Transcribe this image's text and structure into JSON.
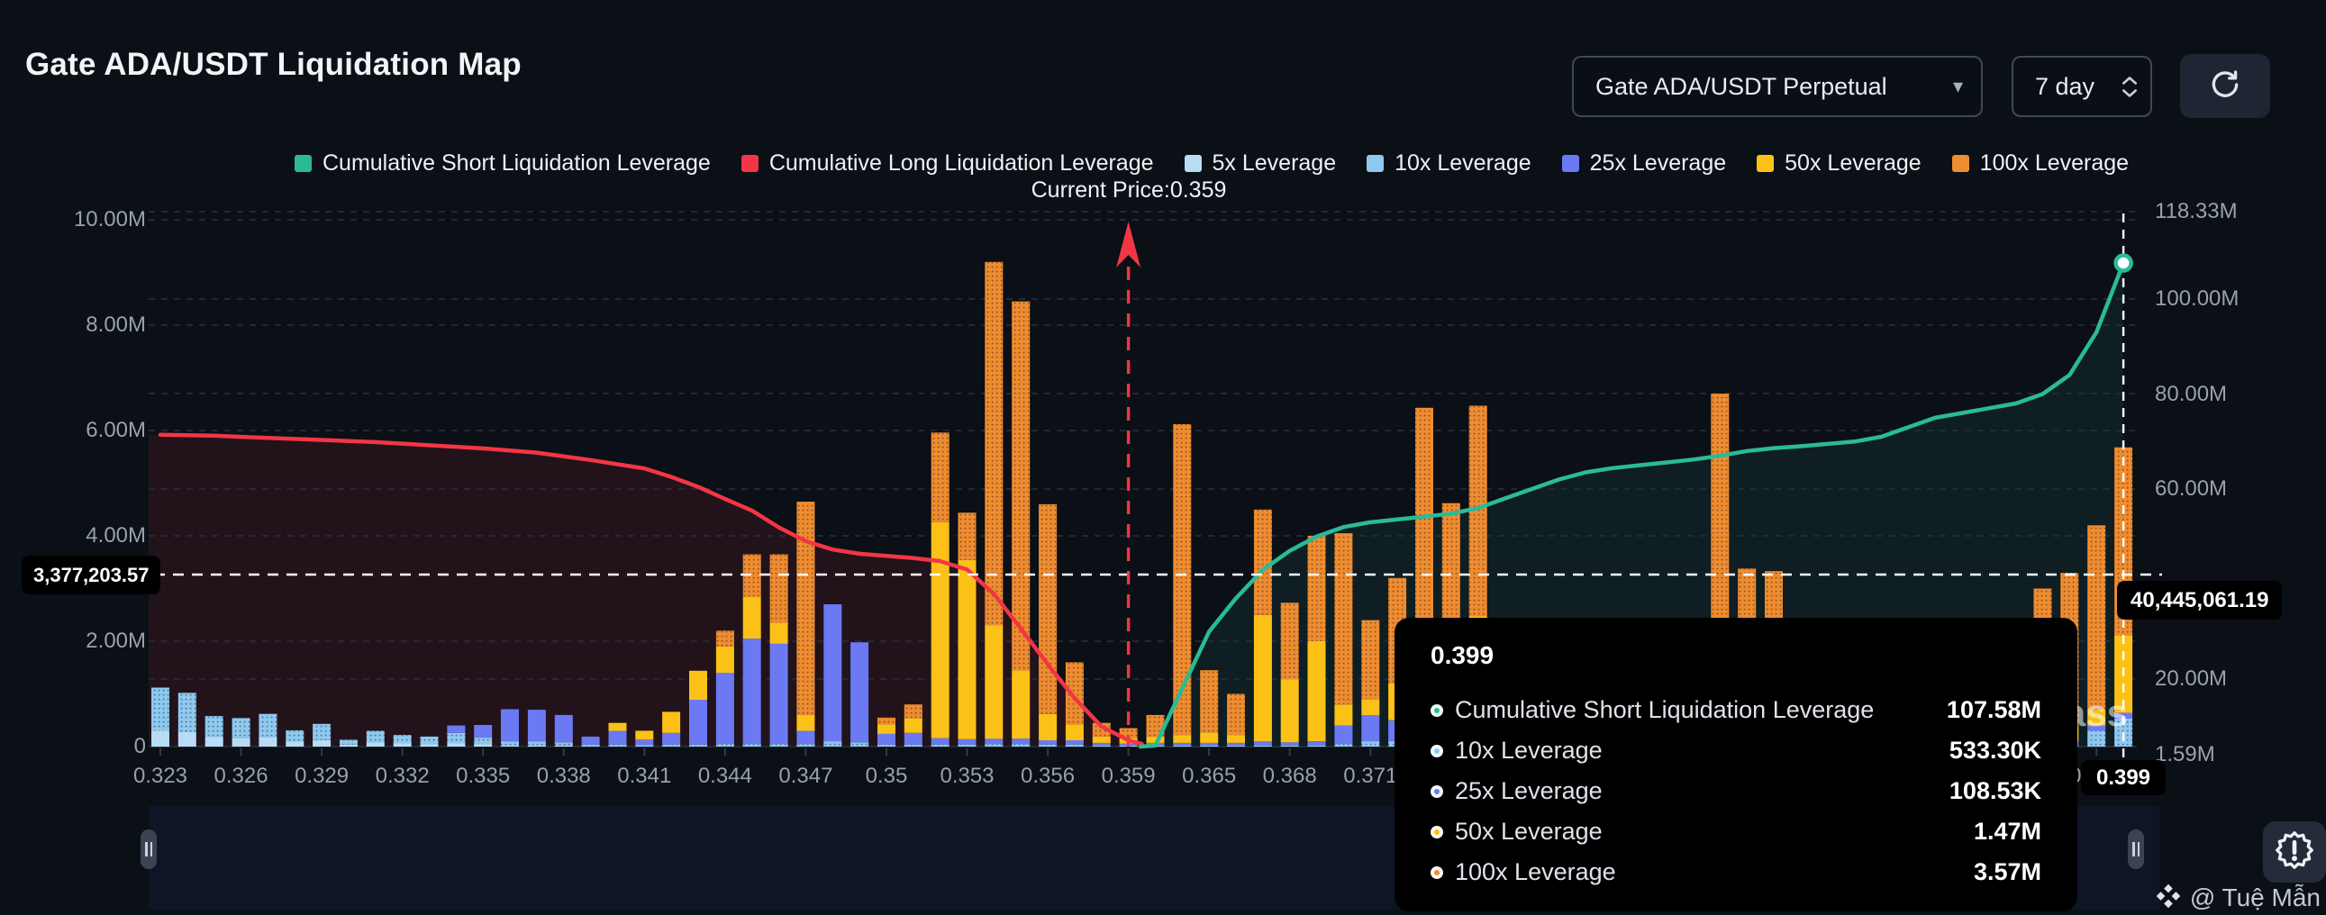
{
  "header": {
    "title": "Gate ADA/USDT Liquidation Map"
  },
  "controls": {
    "pair_selector": {
      "value": "Gate ADA/USDT Perpetual"
    },
    "period": {
      "value": "7 day"
    }
  },
  "palette": {
    "short": "#2abb96",
    "long": "#f23645",
    "x5": "#b9dcf5",
    "x10": "#8ec9f0",
    "x25": "#6b79f2",
    "x50": "#fbc117",
    "x100": "#ef8c30",
    "background": "#0b0f16",
    "tooltip_bg": "#000000"
  },
  "legend": {
    "items": [
      {
        "key": "short",
        "label": "Cumulative Short Liquidation Leverage"
      },
      {
        "key": "long",
        "label": "Cumulative Long Liquidation Leverage"
      },
      {
        "key": "x5",
        "label": "5x Leverage"
      },
      {
        "key": "x10",
        "label": "10x Leverage"
      },
      {
        "key": "x25",
        "label": "25x Leverage"
      },
      {
        "key": "x50",
        "label": "50x Leverage"
      },
      {
        "key": "x100",
        "label": "100x Leverage"
      }
    ]
  },
  "current_price": {
    "label": "Current Price:0.359",
    "value": 0.359
  },
  "axes": {
    "left": [
      {
        "v": 10,
        "label": "10.00M"
      },
      {
        "v": 8,
        "label": "8.00M"
      },
      {
        "v": 6,
        "label": "6.00M"
      },
      {
        "v": 4,
        "label": "4.00M"
      },
      {
        "v": 2,
        "label": "2.00M"
      },
      {
        "v": 0,
        "label": "0"
      }
    ],
    "right": [
      {
        "v": 118.33,
        "label": "118.33M"
      },
      {
        "v": 100,
        "label": "100.00M"
      },
      {
        "v": 80,
        "label": "80.00M"
      },
      {
        "v": 60,
        "label": "60.00M"
      },
      {
        "v": 20,
        "label": "20.00M"
      },
      {
        "v": 1.59,
        "label": "1.59M"
      }
    ]
  },
  "crosshair": {
    "left_label": "3,377,203.57",
    "right_label": "40,445,061.19",
    "x_label": "0.399"
  },
  "tooltip": {
    "title": "0.399",
    "rows": [
      {
        "key": "short",
        "label": "Cumulative Short Liquidation Leverage",
        "value": "107.58M"
      },
      {
        "key": "x10",
        "label": "10x Leverage",
        "value": "533.30K"
      },
      {
        "key": "x25",
        "label": "25x Leverage",
        "value": "108.53K"
      },
      {
        "key": "x50",
        "label": "50x Leverage",
        "value": "1.47M"
      },
      {
        "key": "x100",
        "label": "100x Leverage",
        "value": "3.57M"
      }
    ]
  },
  "watermark": "ass",
  "attribution": {
    "handle": "@ Tuệ Mẫn"
  },
  "chart_data": {
    "type": "bar+line",
    "title": "Gate ADA/USDT Liquidation Map",
    "x_axis_note": "price levels, labels every 3rd bar",
    "left_axis": {
      "unit": "M",
      "min": 0,
      "max": 10,
      "ticks": [
        0,
        2,
        4,
        6,
        8,
        10
      ]
    },
    "right_axis": {
      "unit": "M",
      "min": 1.59,
      "max": 118.33,
      "ticks": [
        1.59,
        20,
        60,
        80,
        100,
        118.33
      ]
    },
    "bar_columns": [
      "price",
      "5x Leverage",
      "10x Leverage",
      "25x Leverage",
      "50x Leverage",
      "100x Leverage"
    ],
    "bars": [
      [
        "0.323",
        0.3,
        0.82,
        0,
        0,
        0
      ],
      [
        "0.324",
        0.28,
        0.74,
        0,
        0,
        0
      ],
      [
        "0.325",
        0.18,
        0.4,
        0,
        0,
        0
      ],
      [
        "0.326",
        0.16,
        0.38,
        0,
        0,
        0
      ],
      [
        "0.327",
        0.18,
        0.44,
        0,
        0,
        0
      ],
      [
        "0.328",
        0.1,
        0.21,
        0,
        0,
        0
      ],
      [
        "0.329",
        0.12,
        0.31,
        0,
        0,
        0
      ],
      [
        "0.330",
        0.04,
        0.09,
        0,
        0,
        0
      ],
      [
        "0.331",
        0.08,
        0.22,
        0,
        0,
        0
      ],
      [
        "0.332",
        0.06,
        0.16,
        0,
        0,
        0
      ],
      [
        "0.333",
        0.05,
        0.14,
        0,
        0,
        0
      ],
      [
        "0.334",
        0.06,
        0.2,
        0.14,
        0,
        0
      ],
      [
        "0.335",
        0.05,
        0.12,
        0.24,
        0,
        0
      ],
      [
        "0.336",
        0.02,
        0.08,
        0.61,
        0,
        0
      ],
      [
        "0.337",
        0.02,
        0.08,
        0.6,
        0,
        0
      ],
      [
        "0.338",
        0.02,
        0.06,
        0.52,
        0,
        0
      ],
      [
        "0.339",
        0,
        0.04,
        0.15,
        0,
        0
      ],
      [
        "0.340",
        0,
        0.04,
        0.26,
        0.15,
        0
      ],
      [
        "0.341",
        0,
        0.03,
        0.1,
        0.17,
        0
      ],
      [
        "0.342",
        0,
        0.04,
        0.22,
        0.4,
        0
      ],
      [
        "0.343",
        0,
        0.04,
        0.85,
        0.55,
        0
      ],
      [
        "0.344",
        0,
        0.05,
        1.35,
        0.5,
        0.3
      ],
      [
        "0.345",
        0,
        0.05,
        2.0,
        0.8,
        0.8
      ],
      [
        "0.346",
        0,
        0.05,
        1.9,
        0.4,
        1.3
      ],
      [
        "0.347",
        0,
        0.05,
        0.25,
        0.3,
        4.05
      ],
      [
        "0.348",
        0,
        0.1,
        2.6,
        0,
        0
      ],
      [
        "0.349",
        0,
        0.08,
        1.9,
        0,
        0
      ],
      [
        "0.350",
        0,
        0.04,
        0.2,
        0.18,
        0.13
      ],
      [
        "0.351",
        0,
        0.04,
        0.22,
        0.28,
        0.26
      ],
      [
        "0.352",
        0,
        0.04,
        0.12,
        4.1,
        1.7
      ],
      [
        "0.353",
        0,
        0.04,
        0.1,
        3.4,
        0.9
      ],
      [
        "0.354",
        0,
        0.05,
        0.1,
        2.15,
        6.9
      ],
      [
        "0.355",
        0,
        0.05,
        0.1,
        1.3,
        7.0
      ],
      [
        "0.356",
        0,
        0.04,
        0.08,
        0.5,
        3.98
      ],
      [
        "0.357",
        0,
        0.04,
        0.08,
        0.3,
        1.18
      ],
      [
        "0.358",
        0,
        0.02,
        0.05,
        0.12,
        0.26
      ],
      [
        "0.359",
        0,
        0.02,
        0.04,
        0.1,
        0.19
      ],
      [
        "0.361",
        0,
        0.02,
        0.05,
        0.12,
        0.41
      ],
      [
        "0.363",
        0,
        0.02,
        0.05,
        0.15,
        5.9
      ],
      [
        "0.365",
        0,
        0.02,
        0.05,
        0.2,
        1.18
      ],
      [
        "0.366",
        0,
        0.02,
        0.05,
        0.15,
        0.78
      ],
      [
        "0.367",
        0,
        0.02,
        0.08,
        2.4,
        2.0
      ],
      [
        "0.368",
        0,
        0.02,
        0.06,
        1.2,
        1.45
      ],
      [
        "0.369",
        0,
        0.02,
        0.08,
        1.9,
        2.0
      ],
      [
        "0.370",
        0,
        0.05,
        0.35,
        0.4,
        3.25
      ],
      [
        "0.371",
        0,
        0.1,
        0.5,
        0.3,
        1.5
      ],
      [
        "0.372",
        0,
        0.1,
        0.4,
        0.7,
        2.0
      ],
      [
        "0.373",
        0,
        0.03,
        0.3,
        1.8,
        4.3
      ],
      [
        "0.374",
        0,
        0.02,
        0.1,
        1.5,
        3.0
      ],
      [
        "0.375",
        0,
        0.02,
        0.15,
        2.3,
        4.0
      ],
      [
        "0.376",
        0,
        0.02,
        0.08,
        0.3,
        2.0
      ],
      [
        "0.377",
        0,
        0.02,
        0.05,
        0.2,
        1.2
      ],
      [
        "0.378",
        0,
        0.02,
        0.05,
        0.3,
        1.6
      ],
      [
        "0.379",
        0,
        0.02,
        0.05,
        1.0,
        1.3
      ],
      [
        "0.380",
        0,
        0.02,
        0.05,
        0.5,
        1.5
      ],
      [
        "0.381",
        0,
        0.02,
        0.05,
        0.3,
        1.3
      ],
      [
        "0.382",
        0,
        0.02,
        0.05,
        0.4,
        1.4
      ],
      [
        "0.383",
        0,
        0.02,
        0.1,
        2.26,
        0
      ],
      [
        "0.384",
        0,
        0.02,
        0.08,
        0.3,
        6.3
      ],
      [
        "0.385",
        0,
        0.02,
        0.06,
        0.3,
        3.0
      ],
      [
        "0.386",
        0,
        0.02,
        0.06,
        0.3,
        2.95
      ],
      [
        "0.387",
        0,
        0.02,
        0.05,
        0.2,
        1.2
      ],
      [
        "0.388",
        0,
        0.02,
        0.05,
        0.2,
        1.0
      ],
      [
        "0.389",
        0,
        0.02,
        0.05,
        0.3,
        1.2
      ],
      [
        "0.390",
        0,
        0.02,
        0.05,
        0.2,
        1.1
      ],
      [
        "0.391",
        0,
        0.02,
        0.05,
        0.3,
        1.4
      ],
      [
        "0.392",
        0,
        0.02,
        0.05,
        0.2,
        1.2
      ],
      [
        "0.393",
        0,
        0.02,
        0.05,
        0.3,
        1.5
      ],
      [
        "0.394",
        0,
        0.02,
        0.05,
        0.2,
        1.3
      ],
      [
        "0.395",
        0,
        0.02,
        0.05,
        0.3,
        1.6
      ],
      [
        "0.396",
        0,
        0.02,
        0.08,
        0.2,
        2.7
      ],
      [
        "0.397",
        0,
        0.02,
        0.08,
        0.3,
        2.9
      ],
      [
        "0.398",
        0,
        0.3,
        0.1,
        0.3,
        3.5
      ],
      [
        "0.399",
        0,
        0.53,
        0.11,
        1.47,
        3.57
      ]
    ],
    "long_line_axis": "left",
    "long_line": [
      [
        "0.323",
        5.92
      ],
      [
        "0.325",
        5.9
      ],
      [
        "0.327",
        5.86
      ],
      [
        "0.329",
        5.82
      ],
      [
        "0.331",
        5.78
      ],
      [
        "0.333",
        5.72
      ],
      [
        "0.335",
        5.66
      ],
      [
        "0.337",
        5.58
      ],
      [
        "0.339",
        5.44
      ],
      [
        "0.341",
        5.28
      ],
      [
        "0.342",
        5.12
      ],
      [
        "0.343",
        4.93
      ],
      [
        "0.344",
        4.7
      ],
      [
        "0.345",
        4.48
      ],
      [
        "0.346",
        4.16
      ],
      [
        "0.347",
        3.9
      ],
      [
        "0.348",
        3.74
      ],
      [
        "0.349",
        3.66
      ],
      [
        "0.350",
        3.62
      ],
      [
        "0.351",
        3.58
      ],
      [
        "0.352",
        3.52
      ],
      [
        "0.353",
        3.36
      ],
      [
        "0.354",
        2.9
      ],
      [
        "0.355",
        2.24
      ],
      [
        "0.356",
        1.56
      ],
      [
        "0.357",
        0.92
      ],
      [
        "0.358",
        0.38
      ],
      [
        "0.359",
        0.12
      ],
      [
        "0.360",
        0.05
      ]
    ],
    "short_line_axis": "right",
    "short_line": [
      [
        "0.361",
        6
      ],
      [
        "0.363",
        18
      ],
      [
        "0.365",
        30
      ],
      [
        "0.366",
        37
      ],
      [
        "0.367",
        43
      ],
      [
        "0.368",
        47
      ],
      [
        "0.369",
        50
      ],
      [
        "0.370",
        52
      ],
      [
        "0.371",
        53
      ],
      [
        "0.372",
        53.6
      ],
      [
        "0.373",
        54.2
      ],
      [
        "0.374",
        54.8
      ],
      [
        "0.375",
        56
      ],
      [
        "0.376",
        58
      ],
      [
        "0.377",
        60
      ],
      [
        "0.378",
        62
      ],
      [
        "0.379",
        63.5
      ],
      [
        "0.380",
        64.4
      ],
      [
        "0.381",
        65
      ],
      [
        "0.382",
        65.6
      ],
      [
        "0.383",
        66.2
      ],
      [
        "0.384",
        67
      ],
      [
        "0.385",
        68
      ],
      [
        "0.386",
        68.6
      ],
      [
        "0.387",
        69
      ],
      [
        "0.388",
        69.5
      ],
      [
        "0.389",
        70
      ],
      [
        "0.390",
        71
      ],
      [
        "0.391",
        73
      ],
      [
        "0.392",
        75
      ],
      [
        "0.393",
        76
      ],
      [
        "0.394",
        77
      ],
      [
        "0.395",
        78
      ],
      [
        "0.396",
        80
      ],
      [
        "0.397",
        84
      ],
      [
        "0.398",
        93
      ],
      [
        "0.399",
        107.58
      ]
    ]
  }
}
